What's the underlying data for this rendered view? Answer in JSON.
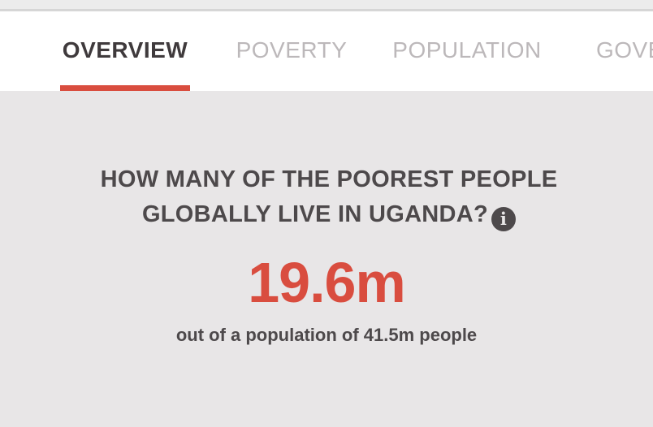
{
  "tabs": [
    {
      "label": "OVERVIEW",
      "active": true
    },
    {
      "label": "POVERTY",
      "active": false
    },
    {
      "label": "POPULATION",
      "active": false
    },
    {
      "label": "GOVE",
      "active": false
    }
  ],
  "main": {
    "question_line1": "HOW MANY OF THE POOREST PEOPLE",
    "question_line2": "GLOBALLY LIVE IN UGANDA?",
    "info_glyph": "i",
    "value": "19.6m",
    "subtext": "out of a population of 41.5m people"
  },
  "colors": {
    "accent": "#d94d3f",
    "text_dark": "#4d494b",
    "tab_inactive": "#bcb8ba",
    "background": "#e8e6e7"
  }
}
